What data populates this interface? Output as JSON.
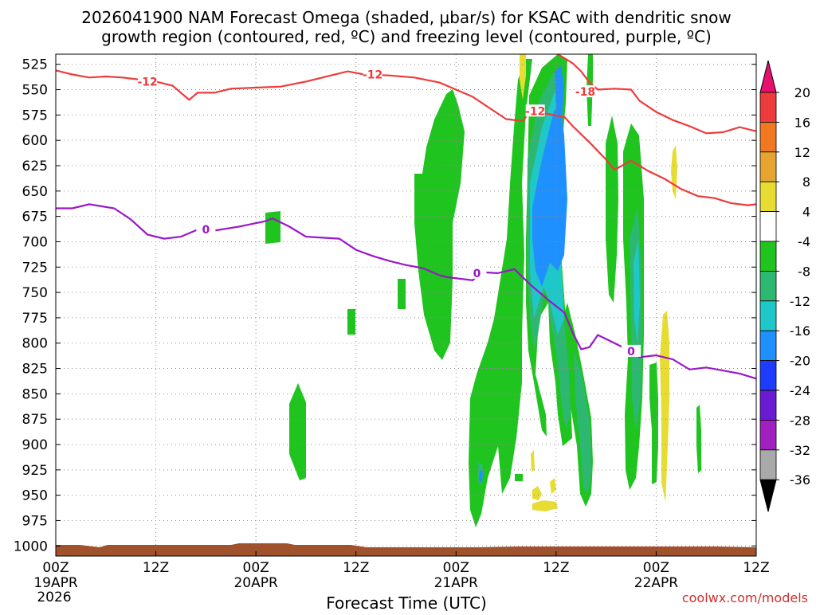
{
  "title_line1": "2026041900 NAM Forecast Omega (shaded, μbar/s) for KSAC with dendritic snow",
  "title_line2": "growth region (contoured, red, ºC) and freezing level (contoured, purple, ºC)",
  "xlabel": "Forecast Time (UTC)",
  "credit": "coolwx.com/models",
  "colors": {
    "red_contour": "#ee3b3b",
    "purple_contour": "#9a17c8",
    "ground": "#a0522d",
    "grid": "#909090"
  },
  "chart_data": {
    "type": "heatmap",
    "title": "2026041900 NAM Forecast Omega (shaded, μbar/s) for KSAC with dendritic snow growth region (contoured, red, ºC) and freezing level (contoured, purple, ºC)",
    "xlabel": "Forecast Time (UTC)",
    "x_range_hours": [
      0,
      84
    ],
    "y_range_hPa": [
      515,
      1010
    ],
    "x_ticks": [
      {
        "hour": 0,
        "label": "00Z",
        "sub": "19APR",
        "sub2": "2026"
      },
      {
        "hour": 12,
        "label": "12Z",
        "sub": "",
        "sub2": ""
      },
      {
        "hour": 24,
        "label": "00Z",
        "sub": "20APR",
        "sub2": ""
      },
      {
        "hour": 36,
        "label": "12Z",
        "sub": "",
        "sub2": ""
      },
      {
        "hour": 48,
        "label": "00Z",
        "sub": "21APR",
        "sub2": ""
      },
      {
        "hour": 60,
        "label": "12Z",
        "sub": "",
        "sub2": ""
      },
      {
        "hour": 72,
        "label": "00Z",
        "sub": "22APR",
        "sub2": ""
      },
      {
        "hour": 84,
        "label": "12Z",
        "sub": "",
        "sub2": ""
      }
    ],
    "y_ticks": [
      525,
      550,
      575,
      600,
      625,
      650,
      675,
      700,
      725,
      750,
      775,
      800,
      825,
      850,
      875,
      900,
      925,
      950,
      975,
      1000
    ],
    "grid": true,
    "colorbar": {
      "labels": [
        "20",
        "16",
        "12",
        "8",
        "4",
        "-4",
        "-8",
        "-12",
        "-16",
        "-20",
        "-24",
        "-28",
        "-32",
        "-36"
      ],
      "colors": [
        "#e8106e",
        "#ee3b3b",
        "#f07820",
        "#e6a531",
        "#e6dc32",
        "#ffffff",
        "#1fc41f",
        "#2db872",
        "#1fc8c8",
        "#1e90ff",
        "#1e3cff",
        "#6a1ad0",
        "#a020c0",
        "#a9a9a9",
        "#000000"
      ]
    },
    "contours": [
      {
        "color_key": "red_contour",
        "level": "-12",
        "points": [
          [
            0,
            531
          ],
          [
            2,
            535
          ],
          [
            4,
            538
          ],
          [
            6,
            537
          ],
          [
            8,
            538
          ],
          [
            10,
            540
          ],
          [
            12,
            542
          ],
          [
            14,
            546
          ],
          [
            16,
            560
          ],
          [
            17,
            553
          ],
          [
            19,
            553
          ],
          [
            21,
            549
          ],
          [
            24,
            548
          ],
          [
            27,
            547
          ],
          [
            30,
            542
          ],
          [
            33,
            536
          ],
          [
            35,
            532
          ],
          [
            37,
            535
          ],
          [
            40,
            536
          ],
          [
            43,
            538
          ],
          [
            46,
            543
          ],
          [
            48,
            550
          ],
          [
            50,
            557
          ],
          [
            52,
            568
          ],
          [
            54,
            579
          ],
          [
            56,
            581
          ],
          [
            57,
            570
          ],
          [
            59,
            574
          ],
          [
            61,
            577
          ],
          [
            62,
            586
          ],
          [
            64,
            602
          ],
          [
            66,
            619
          ],
          [
            67,
            629
          ],
          [
            69,
            620
          ],
          [
            71,
            630
          ],
          [
            73,
            638
          ],
          [
            75,
            648
          ],
          [
            77,
            655
          ],
          [
            79,
            657
          ],
          [
            81,
            662
          ],
          [
            83,
            664
          ],
          [
            84,
            663
          ]
        ],
        "labels": [
          [
            11,
            542
          ],
          [
            38,
            535
          ],
          [
            57.5,
            571
          ]
        ]
      },
      {
        "color_key": "red_contour",
        "level": "-18",
        "points": [
          [
            60,
            514
          ],
          [
            61,
            519
          ],
          [
            62,
            524
          ],
          [
            63,
            532
          ],
          [
            64,
            543
          ],
          [
            65,
            550
          ],
          [
            67,
            549
          ],
          [
            69,
            550
          ],
          [
            70,
            561
          ],
          [
            72,
            572
          ],
          [
            74,
            580
          ],
          [
            76,
            586
          ],
          [
            78,
            593
          ],
          [
            80,
            592
          ],
          [
            82,
            587
          ],
          [
            84,
            591
          ]
        ],
        "labels": [
          [
            63.5,
            552
          ]
        ]
      },
      {
        "color_key": "purple_contour",
        "level": "0",
        "points": [
          [
            0,
            667
          ],
          [
            2,
            667
          ],
          [
            4,
            663
          ],
          [
            7,
            667
          ],
          [
            9,
            678
          ],
          [
            11,
            693
          ],
          [
            13,
            697
          ],
          [
            15,
            695
          ],
          [
            17,
            688
          ],
          [
            19,
            689
          ],
          [
            22,
            685
          ],
          [
            25,
            680
          ],
          [
            26,
            677
          ],
          [
            28,
            685
          ],
          [
            30,
            695
          ],
          [
            32,
            696
          ],
          [
            34,
            697
          ],
          [
            36,
            708
          ],
          [
            38,
            714
          ],
          [
            40,
            719
          ],
          [
            42,
            723
          ],
          [
            44,
            726
          ],
          [
            46,
            733
          ],
          [
            47,
            735
          ],
          [
            50,
            738
          ],
          [
            51,
            730
          ],
          [
            53,
            731
          ],
          [
            55,
            727
          ],
          [
            57,
            743
          ],
          [
            59,
            757
          ],
          [
            61,
            770
          ],
          [
            62,
            790
          ],
          [
            63,
            806
          ],
          [
            64,
            804
          ],
          [
            65,
            792
          ],
          [
            67,
            800
          ],
          [
            69,
            808
          ],
          [
            70,
            814
          ],
          [
            72,
            812
          ],
          [
            74,
            816
          ],
          [
            76,
            826
          ],
          [
            78,
            824
          ],
          [
            80,
            827
          ],
          [
            82,
            830
          ],
          [
            84,
            835
          ]
        ],
        "labels": [
          [
            18,
            688
          ],
          [
            50.5,
            731
          ],
          [
            69,
            808
          ]
        ]
      }
    ]
  }
}
